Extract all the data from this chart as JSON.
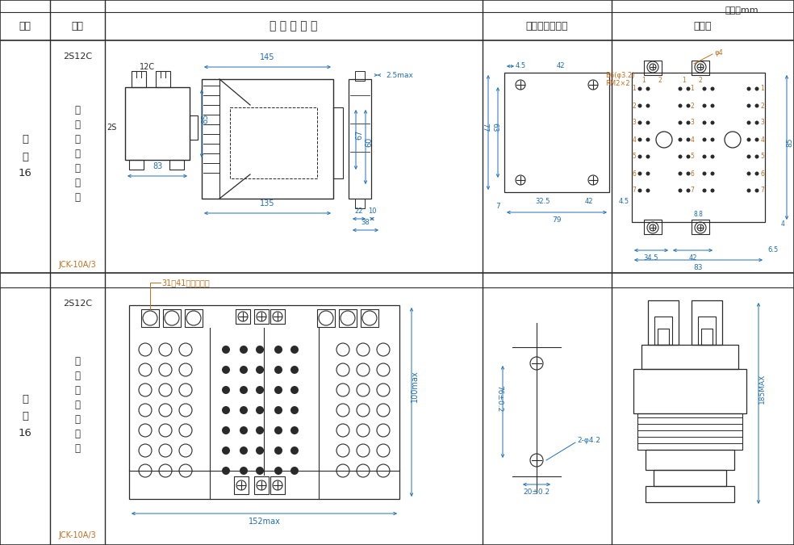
{
  "unit_text": "单位：mm",
  "header_cols": [
    "图号",
    "结构",
    "外 形 尺 寸 图",
    "安装开孔尺寸图",
    "端子图"
  ],
  "dim_color": "#1f6eb5",
  "annotation_color": "#c07020",
  "line_color": "#2a2a2a",
  "bg_color": "#ffffff",
  "col_borders": [
    0,
    62,
    130,
    598,
    758,
    984
  ],
  "row_borders": [
    0,
    15,
    50,
    338,
    356,
    675
  ]
}
